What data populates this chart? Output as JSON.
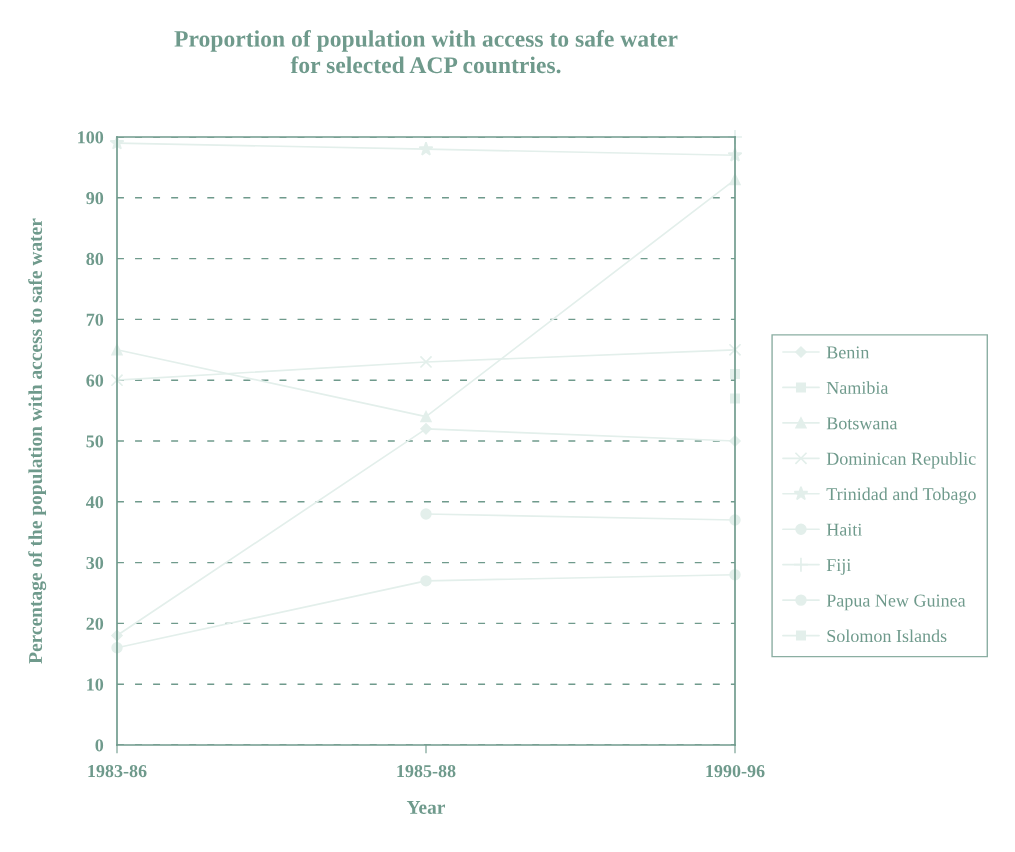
{
  "chart_data": {
    "type": "line",
    "title": "Proportion of population with access to safe water\nfor selected ACP countries.",
    "xlabel": "Year",
    "ylabel": "Percentage of the population with access to safe water",
    "categories": [
      "1983-86",
      "1985-88",
      "1990-96"
    ],
    "ylim": [
      0,
      100
    ],
    "yticks": [
      0,
      10,
      20,
      30,
      40,
      50,
      60,
      70,
      80,
      90,
      100
    ],
    "grid": "y",
    "legend": "right",
    "line_style": "solid",
    "series": [
      {
        "name": "Benin",
        "color": "#e3efeb",
        "marker": "diamond",
        "values": [
          18,
          52,
          50
        ]
      },
      {
        "name": "Namibia",
        "color": "#e3efeb",
        "marker": "square",
        "values": [
          null,
          null,
          57
        ]
      },
      {
        "name": "Botswana",
        "color": "#e3efeb",
        "marker": "triangle",
        "values": [
          65,
          54,
          93
        ]
      },
      {
        "name": "Dominican Republic",
        "color": "#e3efeb",
        "marker": "x",
        "values": [
          60,
          63,
          65
        ]
      },
      {
        "name": "Trinidad and Tobago",
        "color": "#e3efeb",
        "marker": "star",
        "values": [
          99,
          98,
          97
        ]
      },
      {
        "name": "Haiti",
        "color": "#e3efeb",
        "marker": "circle",
        "values": [
          null,
          38,
          37
        ]
      },
      {
        "name": "Fiji",
        "color": "#e3efeb",
        "marker": "cross",
        "values": [
          null,
          null,
          100
        ]
      },
      {
        "name": "Papua New Guinea",
        "color": "#e3efeb",
        "marker": "circle",
        "values": [
          16,
          27,
          28
        ]
      },
      {
        "name": "Solomon Islands",
        "color": "#e3efeb",
        "marker": "square",
        "values": [
          null,
          null,
          61
        ]
      }
    ]
  }
}
